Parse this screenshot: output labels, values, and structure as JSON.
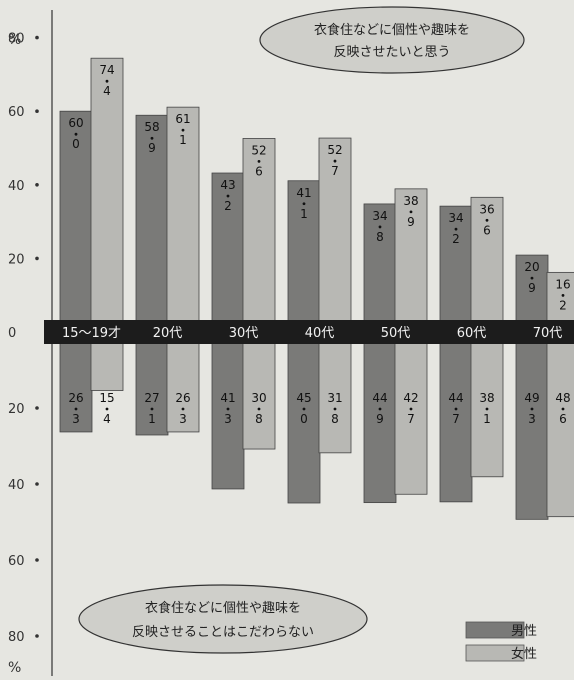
{
  "chart_data": {
    "type": "bar",
    "categories": [
      "15～19才",
      "20代",
      "30代",
      "40代",
      "50代",
      "60代",
      "70代"
    ],
    "series_top": [
      {
        "name": "男性",
        "values": [
          60.0,
          58.9,
          43.2,
          41.1,
          34.8,
          34.2,
          20.9
        ]
      },
      {
        "name": "女性",
        "values": [
          74.4,
          61.1,
          52.6,
          52.7,
          38.9,
          36.6,
          16.2
        ]
      }
    ],
    "series_bottom": [
      {
        "name": "男性",
        "values": [
          26.3,
          27.1,
          41.3,
          45.0,
          44.9,
          44.7,
          49.3
        ]
      },
      {
        "name": "女性",
        "values": [
          15.4,
          26.3,
          30.8,
          31.8,
          42.7,
          38.1,
          48.6
        ]
      }
    ],
    "label_digits_top": [
      [
        [
          "60",
          "0"
        ],
        [
          "58",
          "9"
        ],
        [
          "43",
          "2"
        ],
        [
          "41",
          "1"
        ],
        [
          "34",
          "8"
        ],
        [
          "34",
          "2"
        ],
        [
          "20",
          "9"
        ]
      ],
      [
        [
          "74",
          "4"
        ],
        [
          "61",
          "1"
        ],
        [
          "52",
          "6"
        ],
        [
          "52",
          "7"
        ],
        [
          "38",
          "9"
        ],
        [
          "36",
          "6"
        ],
        [
          "16",
          "2"
        ]
      ]
    ],
    "label_digits_bottom": [
      [
        [
          "26",
          "3"
        ],
        [
          "27",
          "1"
        ],
        [
          "41",
          "3"
        ],
        [
          "45",
          "0"
        ],
        [
          "44",
          "9"
        ],
        [
          "44",
          "7"
        ],
        [
          "49",
          "3"
        ]
      ],
      [
        [
          "15",
          "4"
        ],
        [
          "26",
          "3"
        ],
        [
          "30",
          "8"
        ],
        [
          "31",
          "8"
        ],
        [
          "42",
          "7"
        ],
        [
          "38",
          "1"
        ],
        [
          "48",
          "6"
        ]
      ]
    ],
    "y_ticks": [
      "80",
      "60",
      "40",
      "20",
      "0",
      "20",
      "40",
      "60",
      "80"
    ],
    "y_unit": "%",
    "ylim": [
      -80,
      80
    ],
    "annotation_top": [
      "衣食住などに個性や趣味を",
      "反映させたいと思う"
    ],
    "annotation_bottom": [
      "衣食住などに個性や趣味を",
      "反映させることはこだわらない"
    ],
    "legend": [
      {
        "label": "男性",
        "color": "#7a7a78"
      },
      {
        "label": "女性",
        "color": "#b8b8b4"
      }
    ],
    "legend_position": "bottom-right",
    "colors": {
      "male": "#7a7a78",
      "female": "#b8b8b4",
      "band": "#1c1c1c",
      "background": "#e6e6e1",
      "bubble": "#cfcfca"
    }
  }
}
